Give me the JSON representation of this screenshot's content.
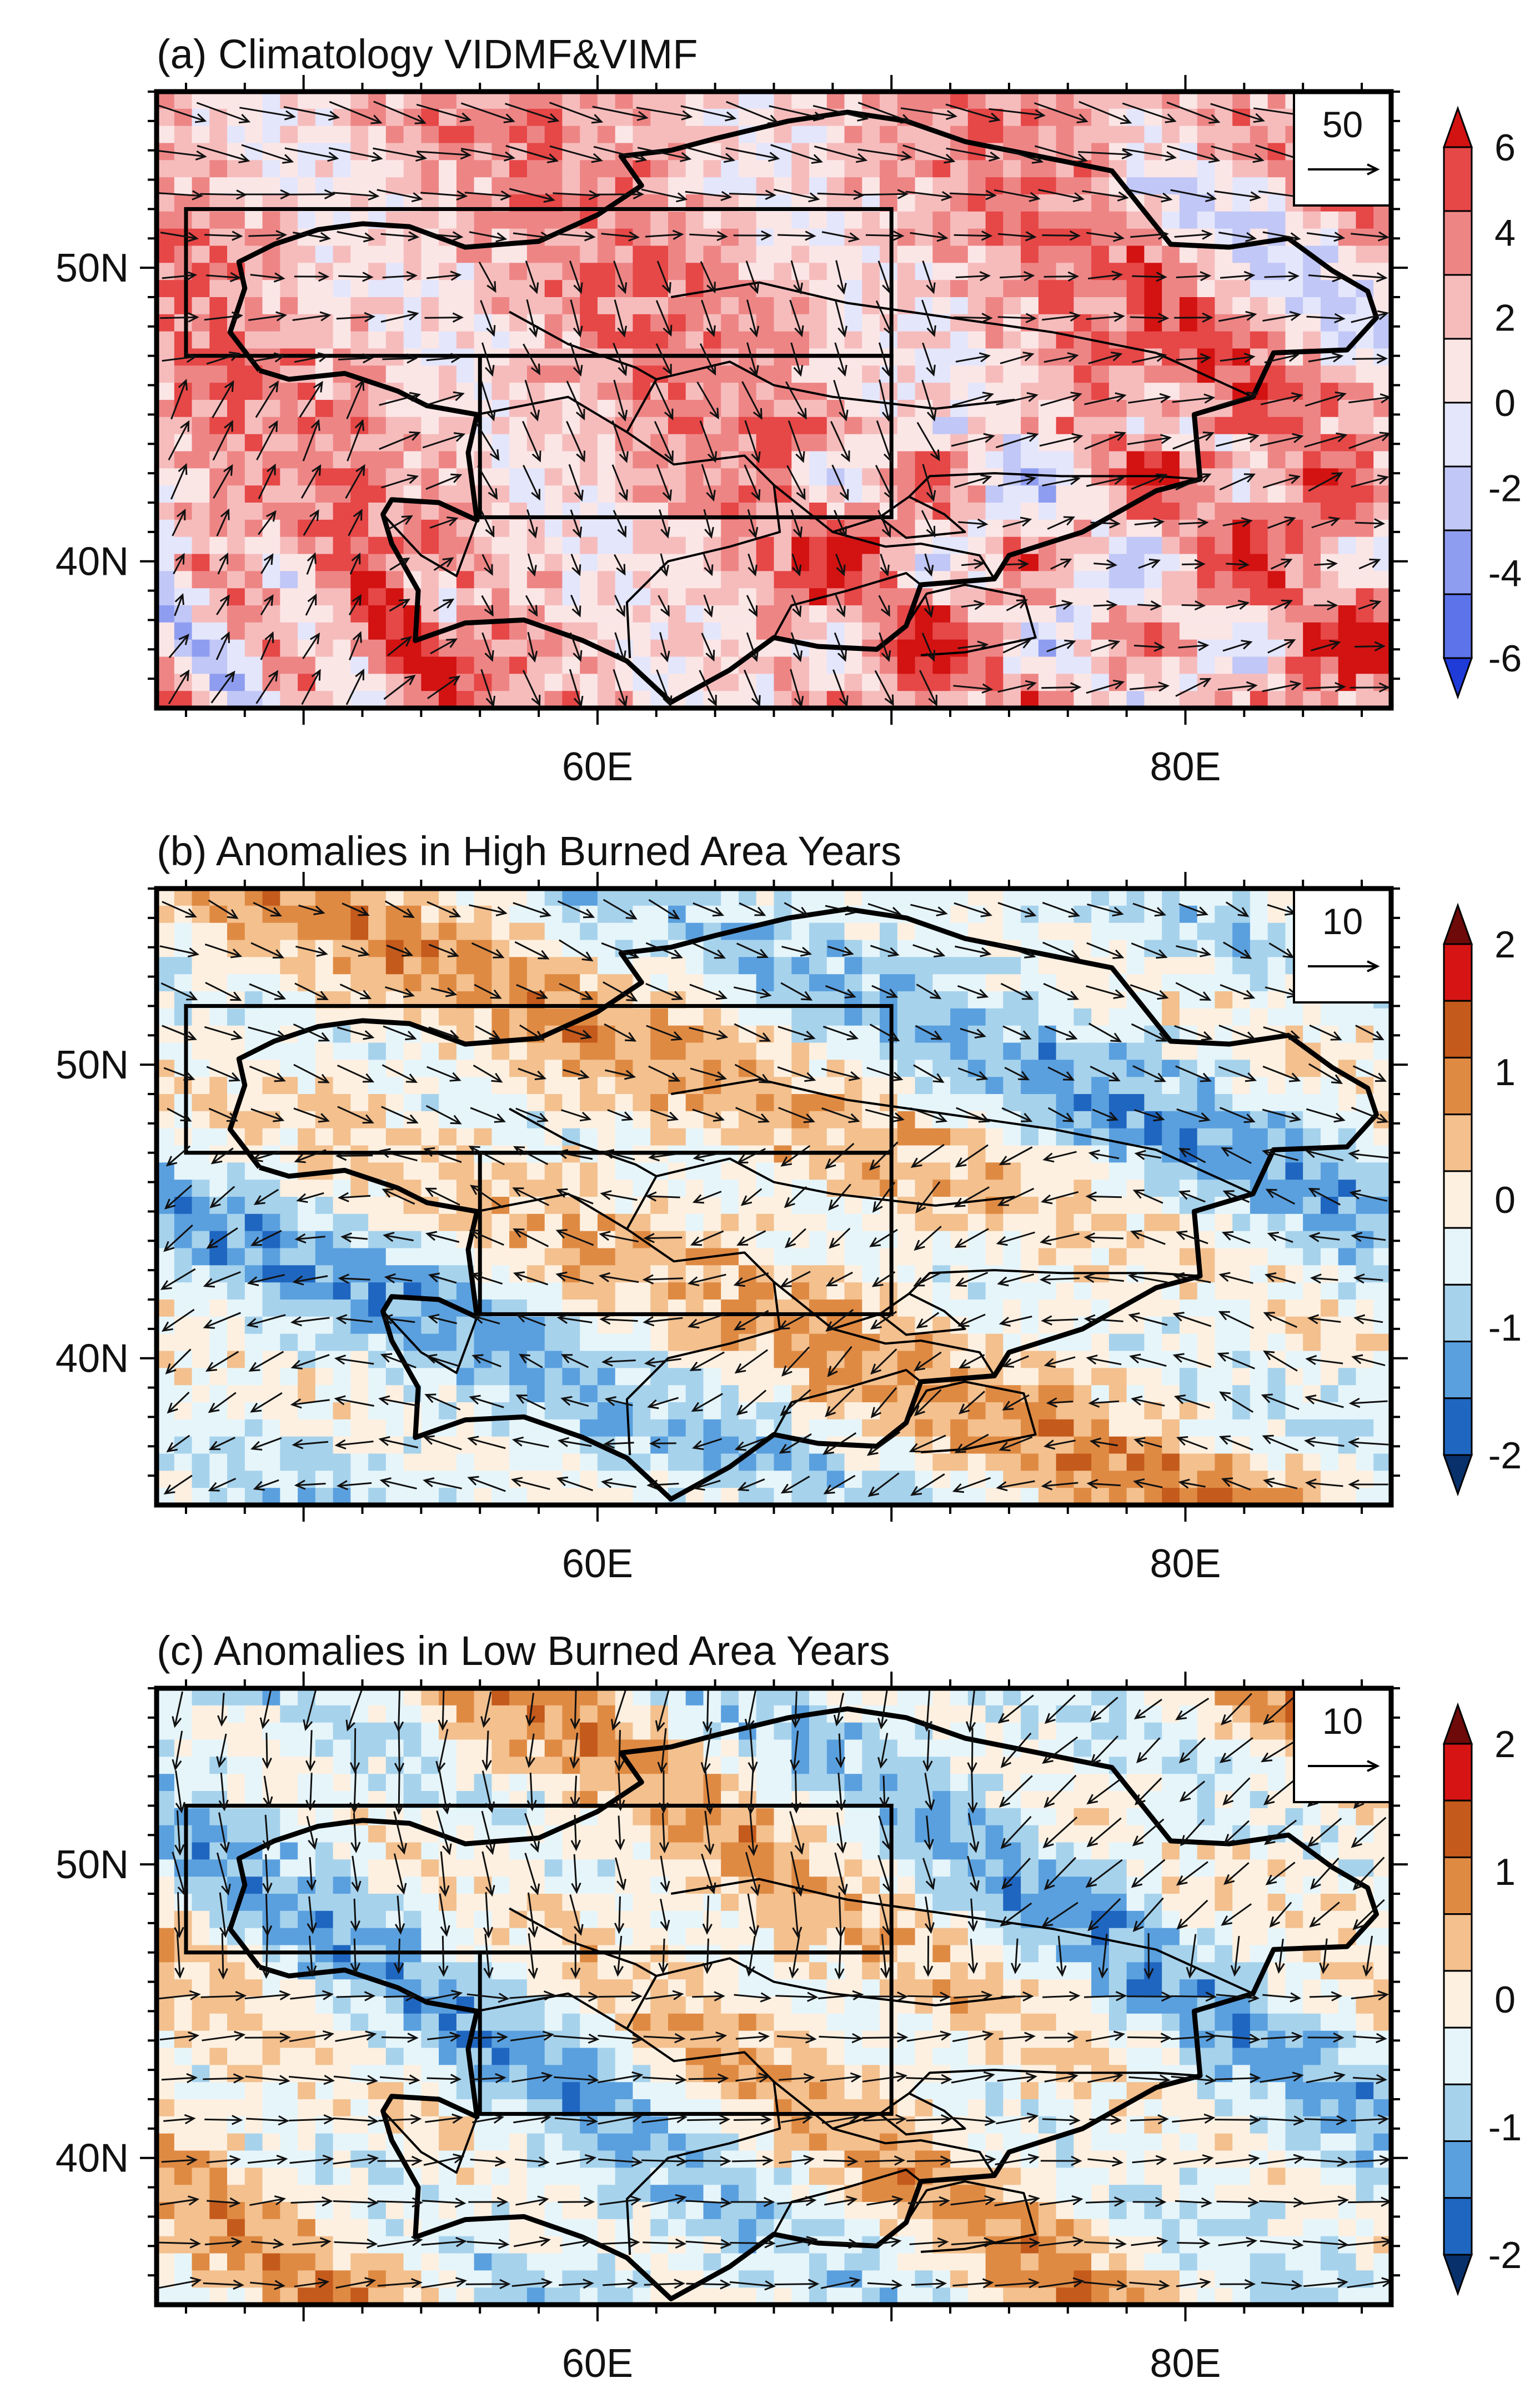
{
  "figure_type": "Three-panel map of moisture flux divergence (shaded) and moisture flux vectors",
  "colors": {
    "clim_palette": [
      "#1f3bd8",
      "#5c73ea",
      "#8f9df0",
      "#c1c7f6",
      "#e4e6fb",
      "#fbe6e6",
      "#f6bcbc",
      "#ee8585",
      "#e64747",
      "#d31212"
    ],
    "anom_palette": [
      "#08306b",
      "#1f66c0",
      "#5aa0df",
      "#a6d2ec",
      "#e6f5fa",
      "#fdf0e1",
      "#f3c08e",
      "#df8a43",
      "#c45a1c",
      "#d71414",
      "#6e0a0a"
    ],
    "frame": "#000000",
    "arrow": "#111111"
  },
  "chart_data": [
    {
      "panel": "a",
      "type": "heatmap",
      "title": "(a) Climatology VIDMF&VIMF",
      "x_ticks": [
        "60E",
        "80E"
      ],
      "y_ticks": [
        "50N",
        "40N"
      ],
      "x_range_deg": [
        45,
        87
      ],
      "y_range_deg": [
        35,
        56
      ],
      "colorbar_labels": [
        "6",
        "4",
        "2",
        "0",
        "-2",
        "-4",
        "-6"
      ],
      "colorbar_range": [
        -6,
        6
      ],
      "reference_vector_label": "50",
      "regions": [
        {
          "name": "northern box",
          "lon": [
            46,
            70
          ],
          "lat": [
            47,
            52
          ]
        },
        {
          "name": "southern box",
          "lon": [
            56,
            70
          ],
          "lat": [
            41.5,
            47
          ]
        }
      ]
    },
    {
      "panel": "b",
      "type": "heatmap",
      "title": "(b) Anomalies in High Burned Area Years",
      "x_ticks": [
        "60E",
        "80E"
      ],
      "y_ticks": [
        "50N",
        "40N"
      ],
      "x_range_deg": [
        45,
        87
      ],
      "y_range_deg": [
        35,
        56
      ],
      "colorbar_labels": [
        "2",
        "1",
        "0",
        "-1",
        "-2"
      ],
      "colorbar_range": [
        -2,
        2
      ],
      "reference_vector_label": "10",
      "regions": [
        {
          "name": "northern box",
          "lon": [
            46,
            70
          ],
          "lat": [
            47,
            52
          ]
        },
        {
          "name": "southern box",
          "lon": [
            56,
            70
          ],
          "lat": [
            41.5,
            47
          ]
        }
      ]
    },
    {
      "panel": "c",
      "type": "heatmap",
      "title": "(c) Anomalies in Low Burned Area Years",
      "x_ticks": [
        "60E",
        "80E"
      ],
      "y_ticks": [
        "50N",
        "40N"
      ],
      "x_range_deg": [
        45,
        87
      ],
      "y_range_deg": [
        35,
        56
      ],
      "colorbar_labels": [
        "2",
        "1",
        "0",
        "-1",
        "-2"
      ],
      "colorbar_range": [
        -2,
        2
      ],
      "reference_vector_label": "10",
      "regions": [
        {
          "name": "northern box",
          "lon": [
            46,
            70
          ],
          "lat": [
            47,
            52
          ]
        },
        {
          "name": "southern box",
          "lon": [
            56,
            70
          ],
          "lat": [
            41.5,
            47
          ]
        }
      ]
    }
  ]
}
